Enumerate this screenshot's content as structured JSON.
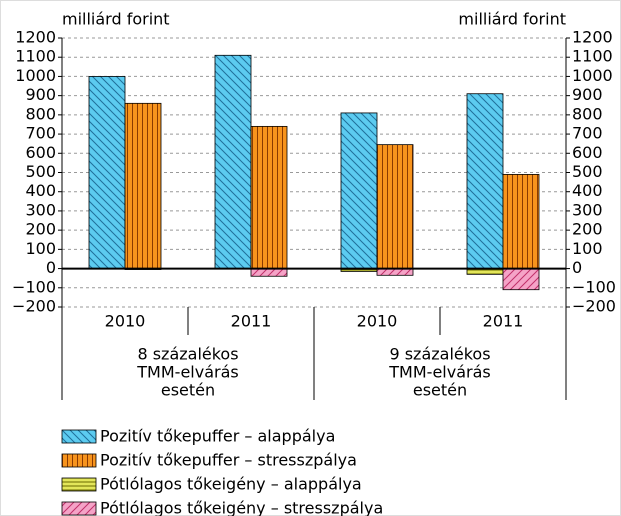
{
  "chart_data": {
    "type": "bar",
    "y_unit_left": "milliárd forint",
    "y_unit_right": "milliárd forint",
    "categories": [
      "2010",
      "2011",
      "2010",
      "2011"
    ],
    "groups": [
      {
        "lines": [
          "8 százalékos",
          "TMM-elvárás",
          "esetén"
        ]
      },
      {
        "lines": [
          "9 százalékos",
          "TMM-elvárás",
          "esetén"
        ]
      }
    ],
    "series": [
      {
        "name": "Pozitív tőkepuffer – alappálya",
        "color": "#5ccbf0",
        "values": [
          1000,
          1110,
          810,
          910
        ]
      },
      {
        "name": "Pozitív tőkepuffer – stresszpálya",
        "color": "#f7941d",
        "values": [
          860,
          740,
          645,
          490
        ]
      },
      {
        "name": "Pótlólagos tőkeigény – alappálya",
        "color": "#e3e65a",
        "values": [
          0,
          0,
          -15,
          -30
        ]
      },
      {
        "name": "Pótlólagos tőkeigény – stresszpálya",
        "color": "#f5a3c7",
        "values": [
          -5,
          -40,
          -35,
          -110
        ]
      }
    ],
    "ylim": [
      -200,
      1200
    ],
    "yticks": [
      {
        "value": -200,
        "label": "−200"
      },
      {
        "value": -100,
        "label": "−100"
      },
      0,
      100,
      200,
      300,
      400,
      500,
      600,
      700,
      800,
      900,
      1000,
      1100,
      1200
    ],
    "grid": true
  }
}
